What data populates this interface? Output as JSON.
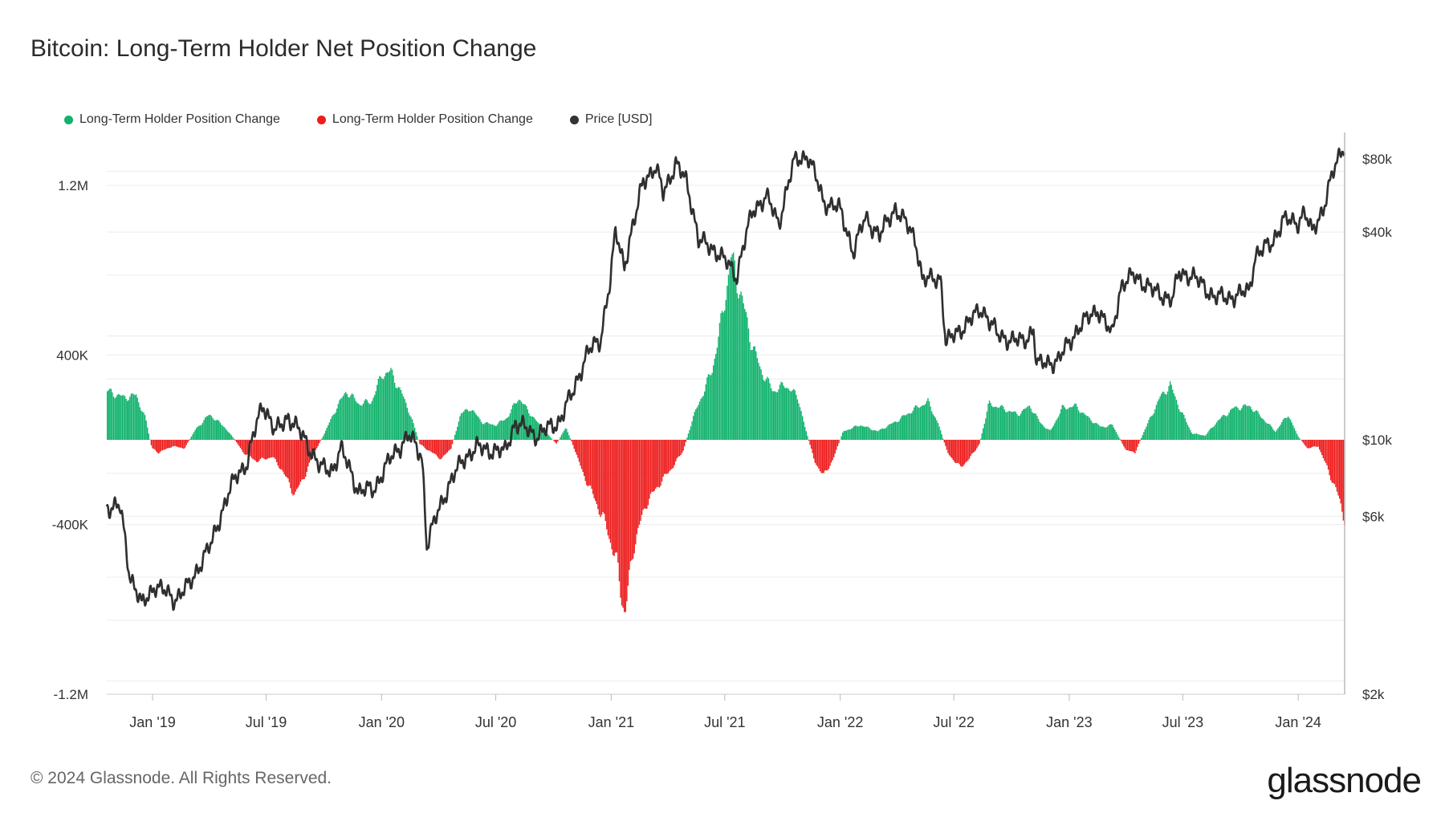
{
  "title": "Bitcoin: Long-Term Holder Net Position Change",
  "legend": [
    {
      "label": "Long-Term Holder Position Change",
      "color": "#10b26c"
    },
    {
      "label": "Long-Term Holder Position Change",
      "color": "#ee1c1c"
    },
    {
      "label": "Price [USD]",
      "color": "#333333"
    }
  ],
  "footer": "© 2024 Glassnode. All Rights Reserved.",
  "logo": "glassnode",
  "chart_data": {
    "type": "bar",
    "left_axis": {
      "ticks": [
        {
          "value": 1200000,
          "label": "1.2M"
        },
        {
          "value": 400000,
          "label": "400K"
        },
        {
          "value": -400000,
          "label": "-400K"
        },
        {
          "value": -1200000,
          "label": "-1.2M"
        }
      ],
      "ylim": [
        -1200000,
        1450000
      ]
    },
    "right_axis": {
      "scale": "log",
      "ticks": [
        {
          "value": 80000,
          "label": "$80k"
        },
        {
          "value": 40000,
          "label": "$40k"
        },
        {
          "value": 10000,
          "label": "$10k"
        },
        {
          "value": 6000,
          "label": "$6k"
        },
        {
          "value": 2000,
          "label": "$2k"
        }
      ]
    },
    "x_ticks": [
      "Jan '19",
      "Jul '19",
      "Jan '20",
      "Jul '20",
      "Jan '21",
      "Jul '21",
      "Jan '22",
      "Jul '22",
      "Jan '23",
      "Jul '23",
      "Jan '24"
    ],
    "x_range": [
      "2018-10-20",
      "2024-03-15"
    ],
    "position_change": [
      {
        "date": "2018-10-20",
        "value": 230000
      },
      {
        "date": "2018-11-15",
        "value": 200000
      },
      {
        "date": "2018-12-05",
        "value": 210000
      },
      {
        "date": "2018-12-20",
        "value": 100000
      },
      {
        "date": "2018-12-30",
        "value": -40000
      },
      {
        "date": "2019-01-10",
        "value": -60000
      },
      {
        "date": "2019-02-01",
        "value": -30000
      },
      {
        "date": "2019-02-20",
        "value": -40000
      },
      {
        "date": "2019-03-10",
        "value": 50000
      },
      {
        "date": "2019-04-01",
        "value": 120000
      },
      {
        "date": "2019-04-25",
        "value": 60000
      },
      {
        "date": "2019-05-10",
        "value": 5000
      },
      {
        "date": "2019-05-25",
        "value": -60000
      },
      {
        "date": "2019-06-15",
        "value": -100000
      },
      {
        "date": "2019-07-10",
        "value": -80000
      },
      {
        "date": "2019-07-25",
        "value": -140000
      },
      {
        "date": "2019-08-15",
        "value": -260000
      },
      {
        "date": "2019-09-01",
        "value": -160000
      },
      {
        "date": "2019-09-15",
        "value": -60000
      },
      {
        "date": "2019-10-01",
        "value": 30000
      },
      {
        "date": "2019-10-20",
        "value": 150000
      },
      {
        "date": "2019-11-05",
        "value": 230000
      },
      {
        "date": "2019-11-25",
        "value": 170000
      },
      {
        "date": "2019-12-15",
        "value": 180000
      },
      {
        "date": "2020-01-01",
        "value": 310000
      },
      {
        "date": "2020-01-15",
        "value": 320000
      },
      {
        "date": "2020-02-01",
        "value": 220000
      },
      {
        "date": "2020-02-15",
        "value": 120000
      },
      {
        "date": "2020-03-01",
        "value": -20000
      },
      {
        "date": "2020-03-20",
        "value": -60000
      },
      {
        "date": "2020-04-05",
        "value": -90000
      },
      {
        "date": "2020-04-20",
        "value": -40000
      },
      {
        "date": "2020-05-05",
        "value": 120000
      },
      {
        "date": "2020-05-20",
        "value": 150000
      },
      {
        "date": "2020-06-10",
        "value": 80000
      },
      {
        "date": "2020-07-01",
        "value": 70000
      },
      {
        "date": "2020-07-20",
        "value": 110000
      },
      {
        "date": "2020-08-05",
        "value": 200000
      },
      {
        "date": "2020-08-20",
        "value": 140000
      },
      {
        "date": "2020-09-05",
        "value": 80000
      },
      {
        "date": "2020-09-20",
        "value": 30000
      },
      {
        "date": "2020-10-05",
        "value": -20000
      },
      {
        "date": "2020-10-20",
        "value": 60000
      },
      {
        "date": "2020-11-01",
        "value": -30000
      },
      {
        "date": "2020-11-15",
        "value": -150000
      },
      {
        "date": "2020-12-05",
        "value": -280000
      },
      {
        "date": "2020-12-25",
        "value": -420000
      },
      {
        "date": "2021-01-10",
        "value": -600000
      },
      {
        "date": "2021-01-22",
        "value": -830000
      },
      {
        "date": "2021-02-05",
        "value": -500000
      },
      {
        "date": "2021-02-25",
        "value": -300000
      },
      {
        "date": "2021-03-20",
        "value": -200000
      },
      {
        "date": "2021-04-10",
        "value": -120000
      },
      {
        "date": "2021-04-25",
        "value": -50000
      },
      {
        "date": "2021-05-10",
        "value": 100000
      },
      {
        "date": "2021-05-25",
        "value": 210000
      },
      {
        "date": "2021-06-10",
        "value": 330000
      },
      {
        "date": "2021-06-25",
        "value": 560000
      },
      {
        "date": "2021-07-10",
        "value": 860000
      },
      {
        "date": "2021-07-25",
        "value": 700000
      },
      {
        "date": "2021-08-10",
        "value": 480000
      },
      {
        "date": "2021-08-25",
        "value": 340000
      },
      {
        "date": "2021-09-15",
        "value": 230000
      },
      {
        "date": "2021-10-05",
        "value": 260000
      },
      {
        "date": "2021-10-25",
        "value": 200000
      },
      {
        "date": "2021-11-05",
        "value": 60000
      },
      {
        "date": "2021-11-20",
        "value": -100000
      },
      {
        "date": "2021-12-05",
        "value": -170000
      },
      {
        "date": "2021-12-20",
        "value": -90000
      },
      {
        "date": "2022-01-05",
        "value": 40000
      },
      {
        "date": "2022-02-01",
        "value": 70000
      },
      {
        "date": "2022-03-01",
        "value": 40000
      },
      {
        "date": "2022-04-01",
        "value": 90000
      },
      {
        "date": "2022-05-01",
        "value": 150000
      },
      {
        "date": "2022-05-20",
        "value": 180000
      },
      {
        "date": "2022-06-05",
        "value": 80000
      },
      {
        "date": "2022-06-20",
        "value": -60000
      },
      {
        "date": "2022-07-10",
        "value": -130000
      },
      {
        "date": "2022-07-25",
        "value": -90000
      },
      {
        "date": "2022-08-10",
        "value": -20000
      },
      {
        "date": "2022-08-25",
        "value": 170000
      },
      {
        "date": "2022-09-15",
        "value": 150000
      },
      {
        "date": "2022-10-10",
        "value": 120000
      },
      {
        "date": "2022-10-30",
        "value": 160000
      },
      {
        "date": "2022-11-15",
        "value": 80000
      },
      {
        "date": "2022-12-01",
        "value": 40000
      },
      {
        "date": "2022-12-20",
        "value": 150000
      },
      {
        "date": "2023-01-10",
        "value": 160000
      },
      {
        "date": "2023-02-01",
        "value": 100000
      },
      {
        "date": "2023-02-20",
        "value": 60000
      },
      {
        "date": "2023-03-10",
        "value": 70000
      },
      {
        "date": "2023-04-01",
        "value": -50000
      },
      {
        "date": "2023-04-15",
        "value": -60000
      },
      {
        "date": "2023-05-01",
        "value": 50000
      },
      {
        "date": "2023-05-25",
        "value": 200000
      },
      {
        "date": "2023-06-10",
        "value": 260000
      },
      {
        "date": "2023-06-25",
        "value": 150000
      },
      {
        "date": "2023-07-15",
        "value": 30000
      },
      {
        "date": "2023-08-05",
        "value": 20000
      },
      {
        "date": "2023-08-25",
        "value": 90000
      },
      {
        "date": "2023-09-20",
        "value": 150000
      },
      {
        "date": "2023-10-15",
        "value": 160000
      },
      {
        "date": "2023-11-05",
        "value": 100000
      },
      {
        "date": "2023-11-25",
        "value": 40000
      },
      {
        "date": "2023-12-15",
        "value": 120000
      },
      {
        "date": "2023-12-30",
        "value": 20000
      },
      {
        "date": "2024-01-15",
        "value": -40000
      },
      {
        "date": "2024-02-01",
        "value": -30000
      },
      {
        "date": "2024-02-15",
        "value": -130000
      },
      {
        "date": "2024-03-01",
        "value": -240000
      },
      {
        "date": "2024-03-15",
        "value": -380000
      }
    ],
    "price": [
      {
        "date": "2018-10-20",
        "value": 6400
      },
      {
        "date": "2018-11-10",
        "value": 6400
      },
      {
        "date": "2018-11-25",
        "value": 4100
      },
      {
        "date": "2018-12-15",
        "value": 3300
      },
      {
        "date": "2019-01-05",
        "value": 3800
      },
      {
        "date": "2019-02-05",
        "value": 3450
      },
      {
        "date": "2019-03-01",
        "value": 3800
      },
      {
        "date": "2019-04-05",
        "value": 5000
      },
      {
        "date": "2019-05-15",
        "value": 7900
      },
      {
        "date": "2019-06-01",
        "value": 8600
      },
      {
        "date": "2019-06-26",
        "value": 12800
      },
      {
        "date": "2019-07-15",
        "value": 10500
      },
      {
        "date": "2019-08-05",
        "value": 11700
      },
      {
        "date": "2019-09-01",
        "value": 10000
      },
      {
        "date": "2019-09-25",
        "value": 8300
      },
      {
        "date": "2019-10-15",
        "value": 8200
      },
      {
        "date": "2019-10-28",
        "value": 9400
      },
      {
        "date": "2019-11-25",
        "value": 7100
      },
      {
        "date": "2019-12-20",
        "value": 7200
      },
      {
        "date": "2020-01-15",
        "value": 8800
      },
      {
        "date": "2020-02-13",
        "value": 10300
      },
      {
        "date": "2020-03-05",
        "value": 9000
      },
      {
        "date": "2020-03-13",
        "value": 4900
      },
      {
        "date": "2020-04-10",
        "value": 6900
      },
      {
        "date": "2020-05-10",
        "value": 8800
      },
      {
        "date": "2020-06-01",
        "value": 9500
      },
      {
        "date": "2020-07-15",
        "value": 9200
      },
      {
        "date": "2020-08-01",
        "value": 11200
      },
      {
        "date": "2020-09-05",
        "value": 10300
      },
      {
        "date": "2020-10-10",
        "value": 11300
      },
      {
        "date": "2020-11-01",
        "value": 13700
      },
      {
        "date": "2020-11-25",
        "value": 18000
      },
      {
        "date": "2020-12-15",
        "value": 19500
      },
      {
        "date": "2020-12-31",
        "value": 29000
      },
      {
        "date": "2021-01-08",
        "value": 40000
      },
      {
        "date": "2021-01-22",
        "value": 32000
      },
      {
        "date": "2021-02-10",
        "value": 45000
      },
      {
        "date": "2021-02-21",
        "value": 57000
      },
      {
        "date": "2021-03-13",
        "value": 61000
      },
      {
        "date": "2021-03-25",
        "value": 52000
      },
      {
        "date": "2021-04-14",
        "value": 63000
      },
      {
        "date": "2021-05-01",
        "value": 56000
      },
      {
        "date": "2021-05-20",
        "value": 38000
      },
      {
        "date": "2021-06-20",
        "value": 35000
      },
      {
        "date": "2021-07-20",
        "value": 29800
      },
      {
        "date": "2021-08-15",
        "value": 46000
      },
      {
        "date": "2021-09-05",
        "value": 51000
      },
      {
        "date": "2021-09-25",
        "value": 42000
      },
      {
        "date": "2021-10-20",
        "value": 64000
      },
      {
        "date": "2021-11-10",
        "value": 67000
      },
      {
        "date": "2021-12-05",
        "value": 49000
      },
      {
        "date": "2021-12-30",
        "value": 47000
      },
      {
        "date": "2022-01-22",
        "value": 35000
      },
      {
        "date": "2022-02-10",
        "value": 44000
      },
      {
        "date": "2022-03-05",
        "value": 39000
      },
      {
        "date": "2022-03-30",
        "value": 47000
      },
      {
        "date": "2022-05-01",
        "value": 38000
      },
      {
        "date": "2022-05-12",
        "value": 29000
      },
      {
        "date": "2022-06-10",
        "value": 29500
      },
      {
        "date": "2022-06-18",
        "value": 19000
      },
      {
        "date": "2022-07-25",
        "value": 22000
      },
      {
        "date": "2022-08-15",
        "value": 24000
      },
      {
        "date": "2022-09-10",
        "value": 20000
      },
      {
        "date": "2022-10-20",
        "value": 19200
      },
      {
        "date": "2022-11-05",
        "value": 21000
      },
      {
        "date": "2022-11-10",
        "value": 16500
      },
      {
        "date": "2022-12-15",
        "value": 17000
      },
      {
        "date": "2023-01-15",
        "value": 21000
      },
      {
        "date": "2023-02-15",
        "value": 24000
      },
      {
        "date": "2023-03-10",
        "value": 20000
      },
      {
        "date": "2023-03-25",
        "value": 28000
      },
      {
        "date": "2023-04-15",
        "value": 30000
      },
      {
        "date": "2023-05-15",
        "value": 27000
      },
      {
        "date": "2023-06-15",
        "value": 25500
      },
      {
        "date": "2023-06-25",
        "value": 30500
      },
      {
        "date": "2023-07-15",
        "value": 30000
      },
      {
        "date": "2023-08-20",
        "value": 26000
      },
      {
        "date": "2023-09-10",
        "value": 25800
      },
      {
        "date": "2023-10-15",
        "value": 27000
      },
      {
        "date": "2023-10-25",
        "value": 34500
      },
      {
        "date": "2023-11-20",
        "value": 37000
      },
      {
        "date": "2023-12-08",
        "value": 43500
      },
      {
        "date": "2023-12-30",
        "value": 42500
      },
      {
        "date": "2024-01-11",
        "value": 46000
      },
      {
        "date": "2024-01-23",
        "value": 39500
      },
      {
        "date": "2024-02-10",
        "value": 47000
      },
      {
        "date": "2024-02-28",
        "value": 61000
      },
      {
        "date": "2024-03-14",
        "value": 72000
      }
    ]
  }
}
